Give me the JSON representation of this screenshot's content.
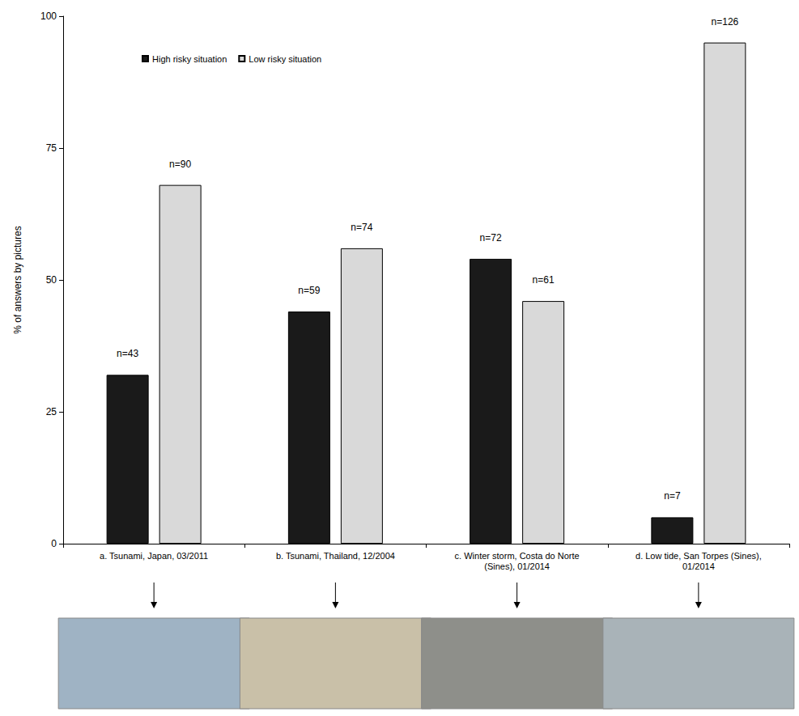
{
  "chart_data": {
    "type": "bar",
    "categories": [
      "a. Tsunami, Japan, 03/2011",
      "b. Tsunami, Thailand, 12/2004",
      "c. Winter storm, Costa do Norte (Sines), 01/2014",
      "d. Low tide, San Torpes (Sines), 01/2014"
    ],
    "series": [
      {
        "name": "High risky situation",
        "color": "#1a1a1a",
        "values": [
          32,
          44,
          54,
          5
        ],
        "annotations": [
          "n=43",
          "n=59",
          "n=72",
          "n=7"
        ]
      },
      {
        "name": "Low risky situation",
        "color": "#d9d9d9",
        "values": [
          68,
          56,
          46,
          95
        ],
        "annotations": [
          "n=90",
          "n=74",
          "n=61",
          "n=126"
        ]
      }
    ],
    "y_label": "% of answers by pictures",
    "ylim": [
      0,
      100
    ],
    "yticks": [
      0,
      25,
      50,
      75,
      100
    ],
    "grid": false,
    "legend": "upper left"
  }
}
